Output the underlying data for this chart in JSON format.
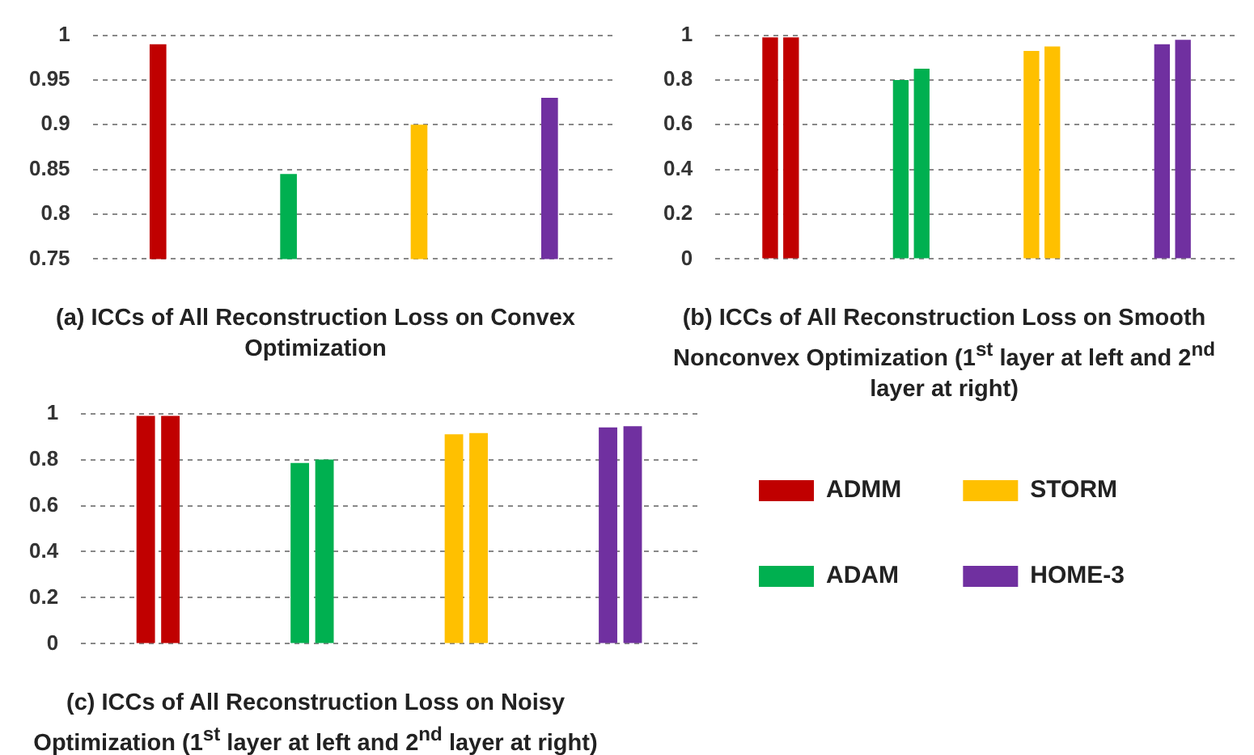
{
  "chart_data": [
    {
      "type": "bar",
      "title": "(a) ICCs of All Reconstruction Loss on Convex Optimization",
      "categories": [
        null,
        null,
        null,
        null
      ],
      "series": [
        {
          "color": "#c00000",
          "values": [
            0.99,
            null,
            null,
            null
          ]
        },
        {
          "color": "#00b050",
          "values": [
            null,
            0.845,
            null,
            null
          ]
        },
        {
          "color": "#ffc000",
          "values": [
            null,
            null,
            0.9,
            null
          ]
        },
        {
          "color": "#7030a0",
          "values": [
            null,
            null,
            null,
            0.93
          ]
        }
      ],
      "ylim": [
        0.75,
        1
      ],
      "yticks": [
        0.75,
        0.8,
        0.85,
        0.9,
        0.95,
        1
      ],
      "grid": "y",
      "tick_labels": "y"
    },
    {
      "type": "bar",
      "title": "(b) ICCs of All Reconstruction Loss on Smooth Nonconvex Optimization (1$^{st}$ layer at left and 2$^{nd}$ layer at right)",
      "categories": [
        null,
        null,
        null,
        null
      ],
      "series": [
        {
          "color": "#c00000",
          "values": [
            0.99,
            null,
            null,
            null
          ]
        },
        {
          "color": "#c00000",
          "values": [
            0.99,
            null,
            null,
            null
          ]
        },
        {
          "color": "#00b050",
          "values": [
            null,
            0.8,
            null,
            null
          ]
        },
        {
          "color": "#00b050",
          "values": [
            null,
            0.85,
            null,
            null
          ]
        },
        {
          "color": "#ffc000",
          "values": [
            null,
            null,
            0.93,
            null
          ]
        },
        {
          "color": "#ffc000",
          "values": [
            null,
            null,
            0.95,
            null
          ]
        },
        {
          "color": "#7030a0",
          "values": [
            null,
            null,
            null,
            0.96
          ]
        },
        {
          "color": "#7030a0",
          "values": [
            null,
            null,
            null,
            0.98
          ]
        }
      ],
      "ylim": [
        0,
        1
      ],
      "yticks": [
        0,
        0.2,
        0.4,
        0.6,
        0.8,
        1
      ],
      "grid": "y",
      "tick_labels": "y"
    },
    {
      "type": "bar",
      "title": "(c) ICCs of All Reconstruction Loss on Noisy Optimization (1$^{st}$ layer at left and 2$^{nd}$ layer at right)",
      "categories": [
        null,
        null,
        null,
        null
      ],
      "series": [
        {
          "name": "ADMM",
          "color": "#c00000",
          "values": [
            0.99,
            null,
            null,
            null
          ]
        },
        {
          "color": "#c00000",
          "values": [
            0.99,
            null,
            null,
            null
          ]
        },
        {
          "name": "ADAM",
          "color": "#00b050",
          "values": [
            null,
            0.785,
            null,
            null
          ]
        },
        {
          "color": "#00b050",
          "values": [
            null,
            0.8,
            null,
            null
          ]
        },
        {
          "name": "STORM",
          "color": "#ffc000",
          "values": [
            null,
            null,
            0.91,
            null
          ]
        },
        {
          "color": "#ffc000",
          "values": [
            null,
            null,
            0.915,
            null
          ]
        },
        {
          "name": "HOME-3",
          "color": "#7030a0",
          "values": [
            null,
            null,
            null,
            0.94
          ]
        },
        {
          "color": "#7030a0",
          "values": [
            null,
            null,
            null,
            0.945
          ]
        }
      ],
      "ylim": [
        0,
        1
      ],
      "yticks": [
        0,
        0.2,
        0.4,
        0.6,
        0.8,
        1
      ],
      "grid": "y",
      "tick_labels": "y",
      "legend": "right"
    }
  ]
}
